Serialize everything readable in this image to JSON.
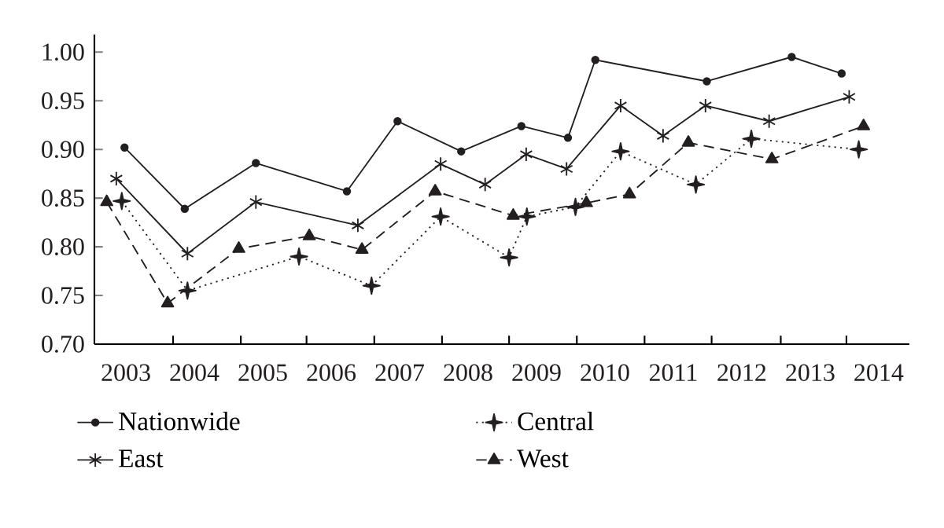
{
  "chart_data": {
    "type": "line",
    "xlim": [
      2002.54,
      2014.45
    ],
    "ylim": [
      0.7,
      1.018
    ],
    "xticks": [
      {
        "value": 2003,
        "label": "2003"
      },
      {
        "value": 2004,
        "label": "2004"
      },
      {
        "value": 2005,
        "label": "2005"
      },
      {
        "value": 2006,
        "label": "2006"
      },
      {
        "value": 2007,
        "label": "2007"
      },
      {
        "value": 2008,
        "label": "2008"
      },
      {
        "value": 2009,
        "label": "2009"
      },
      {
        "value": 2010,
        "label": "2010"
      },
      {
        "value": 2011,
        "label": "2011"
      },
      {
        "value": 2012,
        "label": "2012"
      },
      {
        "value": 2013,
        "label": "2013"
      },
      {
        "value": 2014,
        "label": "2014"
      },
      {
        "value": 2003.69,
        "label": null
      },
      {
        "value": 2004.68,
        "label": null
      },
      {
        "value": 2005.64,
        "label": null
      },
      {
        "value": 2006.63,
        "label": null
      },
      {
        "value": 2007.62,
        "label": null
      },
      {
        "value": 2008.6,
        "label": null
      },
      {
        "value": 2009.59,
        "label": null
      },
      {
        "value": 2010.58,
        "label": null
      },
      {
        "value": 2011.56,
        "label": null
      },
      {
        "value": 2012.57,
        "label": null
      },
      {
        "value": 2013.53,
        "label": null
      }
    ],
    "yticks": [
      {
        "value": 0.7,
        "label": "0.70"
      },
      {
        "value": 0.75,
        "label": "0.75"
      },
      {
        "value": 0.8,
        "label": "0.80"
      },
      {
        "value": 0.85,
        "label": "0.85"
      },
      {
        "value": 0.9,
        "label": "0.90"
      },
      {
        "value": 0.95,
        "label": "0.95"
      },
      {
        "value": 1.0,
        "label": "1.00"
      }
    ],
    "legend": "bottom",
    "grid": false,
    "series": [
      {
        "name": "Nationwide",
        "color": "#231f20",
        "marker": "circle",
        "line_style": "solid",
        "x": [
          2002.98,
          2003.86,
          2004.9,
          2006.23,
          2006.97,
          2007.9,
          2008.78,
          2009.46,
          2009.86,
          2011.49,
          2012.73,
          2013.46
        ],
        "values": [
          0.902,
          0.839,
          0.886,
          0.857,
          0.929,
          0.898,
          0.924,
          0.912,
          0.992,
          0.97,
          0.995,
          0.978
        ]
      },
      {
        "name": "Central",
        "color": "#231f20",
        "marker": "star",
        "line_style": "dotted",
        "x": [
          2002.94,
          2003.9,
          2005.53,
          2006.59,
          2007.6,
          2008.6,
          2008.86,
          2009.57,
          2010.23,
          2011.33,
          2012.14,
          2013.71
        ],
        "values": [
          0.847,
          0.755,
          0.79,
          0.76,
          0.831,
          0.789,
          0.831,
          0.841,
          0.898,
          0.864,
          0.911,
          0.9
        ]
      },
      {
        "name": "East",
        "color": "#231f20",
        "marker": "cross",
        "line_style": "solid",
        "x": [
          2002.86,
          2003.9,
          2004.9,
          2006.39,
          2007.6,
          2008.25,
          2008.85,
          2009.44,
          2010.23,
          2010.85,
          2011.47,
          2012.4,
          2013.57
        ],
        "values": [
          0.87,
          0.793,
          0.846,
          0.822,
          0.885,
          0.864,
          0.895,
          0.88,
          0.945,
          0.914,
          0.945,
          0.929,
          0.954
        ]
      },
      {
        "name": "West",
        "color": "#231f20",
        "marker": "triangle",
        "line_style": "dashed",
        "x": [
          2002.72,
          2003.61,
          2004.65,
          2005.68,
          2006.45,
          2007.52,
          2008.66,
          2009.73,
          2010.36,
          2011.22,
          2012.44,
          2013.78
        ],
        "values": [
          0.846,
          0.742,
          0.798,
          0.811,
          0.797,
          0.857,
          0.832,
          0.845,
          0.854,
          0.907,
          0.89,
          0.924
        ]
      }
    ]
  }
}
